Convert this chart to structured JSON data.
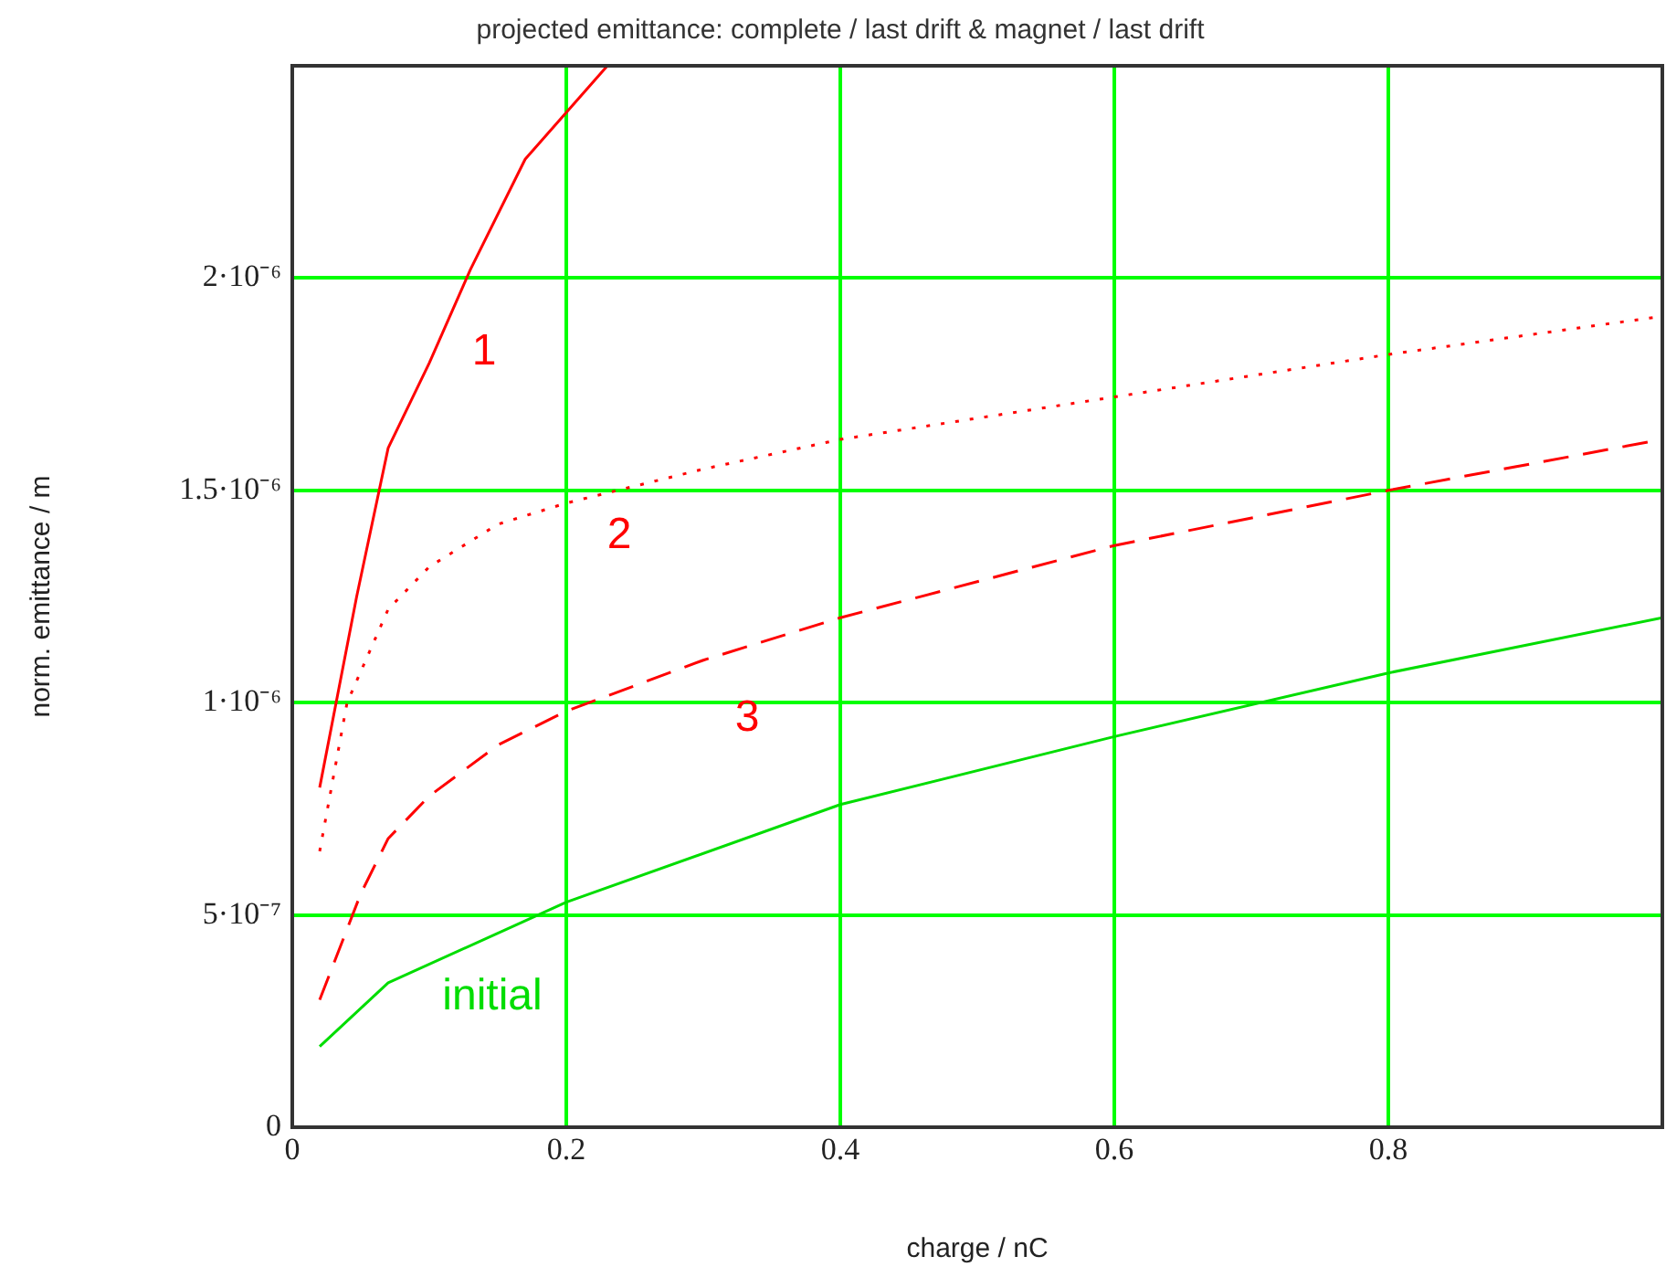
{
  "chart_data": {
    "type": "line",
    "title": "projected emittance: complete / last drift & magnet / last drift",
    "xlabel": "charge / nC",
    "ylabel": "norm. emittance / m",
    "xlim": [
      0,
      1
    ],
    "xticks": [
      0,
      0.2,
      0.4,
      0.6,
      0.8
    ],
    "ylim": [
      0,
      2.5e-06
    ],
    "yticks": [
      {
        "value": 0,
        "label": "0"
      },
      {
        "value": 5e-07,
        "label": "5·10⁻⁷"
      },
      {
        "value": 1e-06,
        "label": "1·10⁻⁶"
      },
      {
        "value": 1.5e-06,
        "label": "1.5·10⁻⁶"
      },
      {
        "value": 2e-06,
        "label": "2·10⁻⁶"
      }
    ],
    "grid": true,
    "legend": false,
    "marker": "none",
    "series": [
      {
        "name": "1",
        "color": "#ff0000",
        "line_style": "solid",
        "x": [
          0.02,
          0.047,
          0.07,
          0.1,
          0.13,
          0.17,
          0.23
        ],
        "values": [
          8e-07,
          1.25e-06,
          1.6e-06,
          1.8e-06,
          2.02e-06,
          2.28e-06,
          2.5e-06
        ]
      },
      {
        "name": "2",
        "color": "#ff0000",
        "line_style": "dotted",
        "x": [
          0.02,
          0.04,
          0.07,
          0.1,
          0.15,
          0.2,
          0.3,
          0.4,
          0.6,
          0.8,
          1.0
        ],
        "values": [
          6.5e-07,
          1e-06,
          1.22e-06,
          1.32e-06,
          1.42e-06,
          1.47e-06,
          1.55e-06,
          1.62e-06,
          1.72e-06,
          1.82e-06,
          1.91e-06
        ]
      },
      {
        "name": "3",
        "color": "#ff0000",
        "line_style": "dashed",
        "x": [
          0.02,
          0.05,
          0.07,
          0.1,
          0.15,
          0.2,
          0.3,
          0.4,
          0.6,
          0.8,
          1.0
        ],
        "values": [
          3e-07,
          5.5e-07,
          6.8e-07,
          7.8e-07,
          9e-07,
          9.8e-07,
          1.1e-06,
          1.2e-06,
          1.37e-06,
          1.5e-06,
          1.62e-06
        ]
      },
      {
        "name": "initial",
        "color": "#00dd00",
        "line_style": "solid",
        "x": [
          0.02,
          0.07,
          0.2,
          0.4,
          0.6,
          0.8,
          1.0
        ],
        "values": [
          1.9e-07,
          3.4e-07,
          5.3e-07,
          7.6e-07,
          9.2e-07,
          1.07e-06,
          1.2e-06
        ]
      }
    ]
  }
}
